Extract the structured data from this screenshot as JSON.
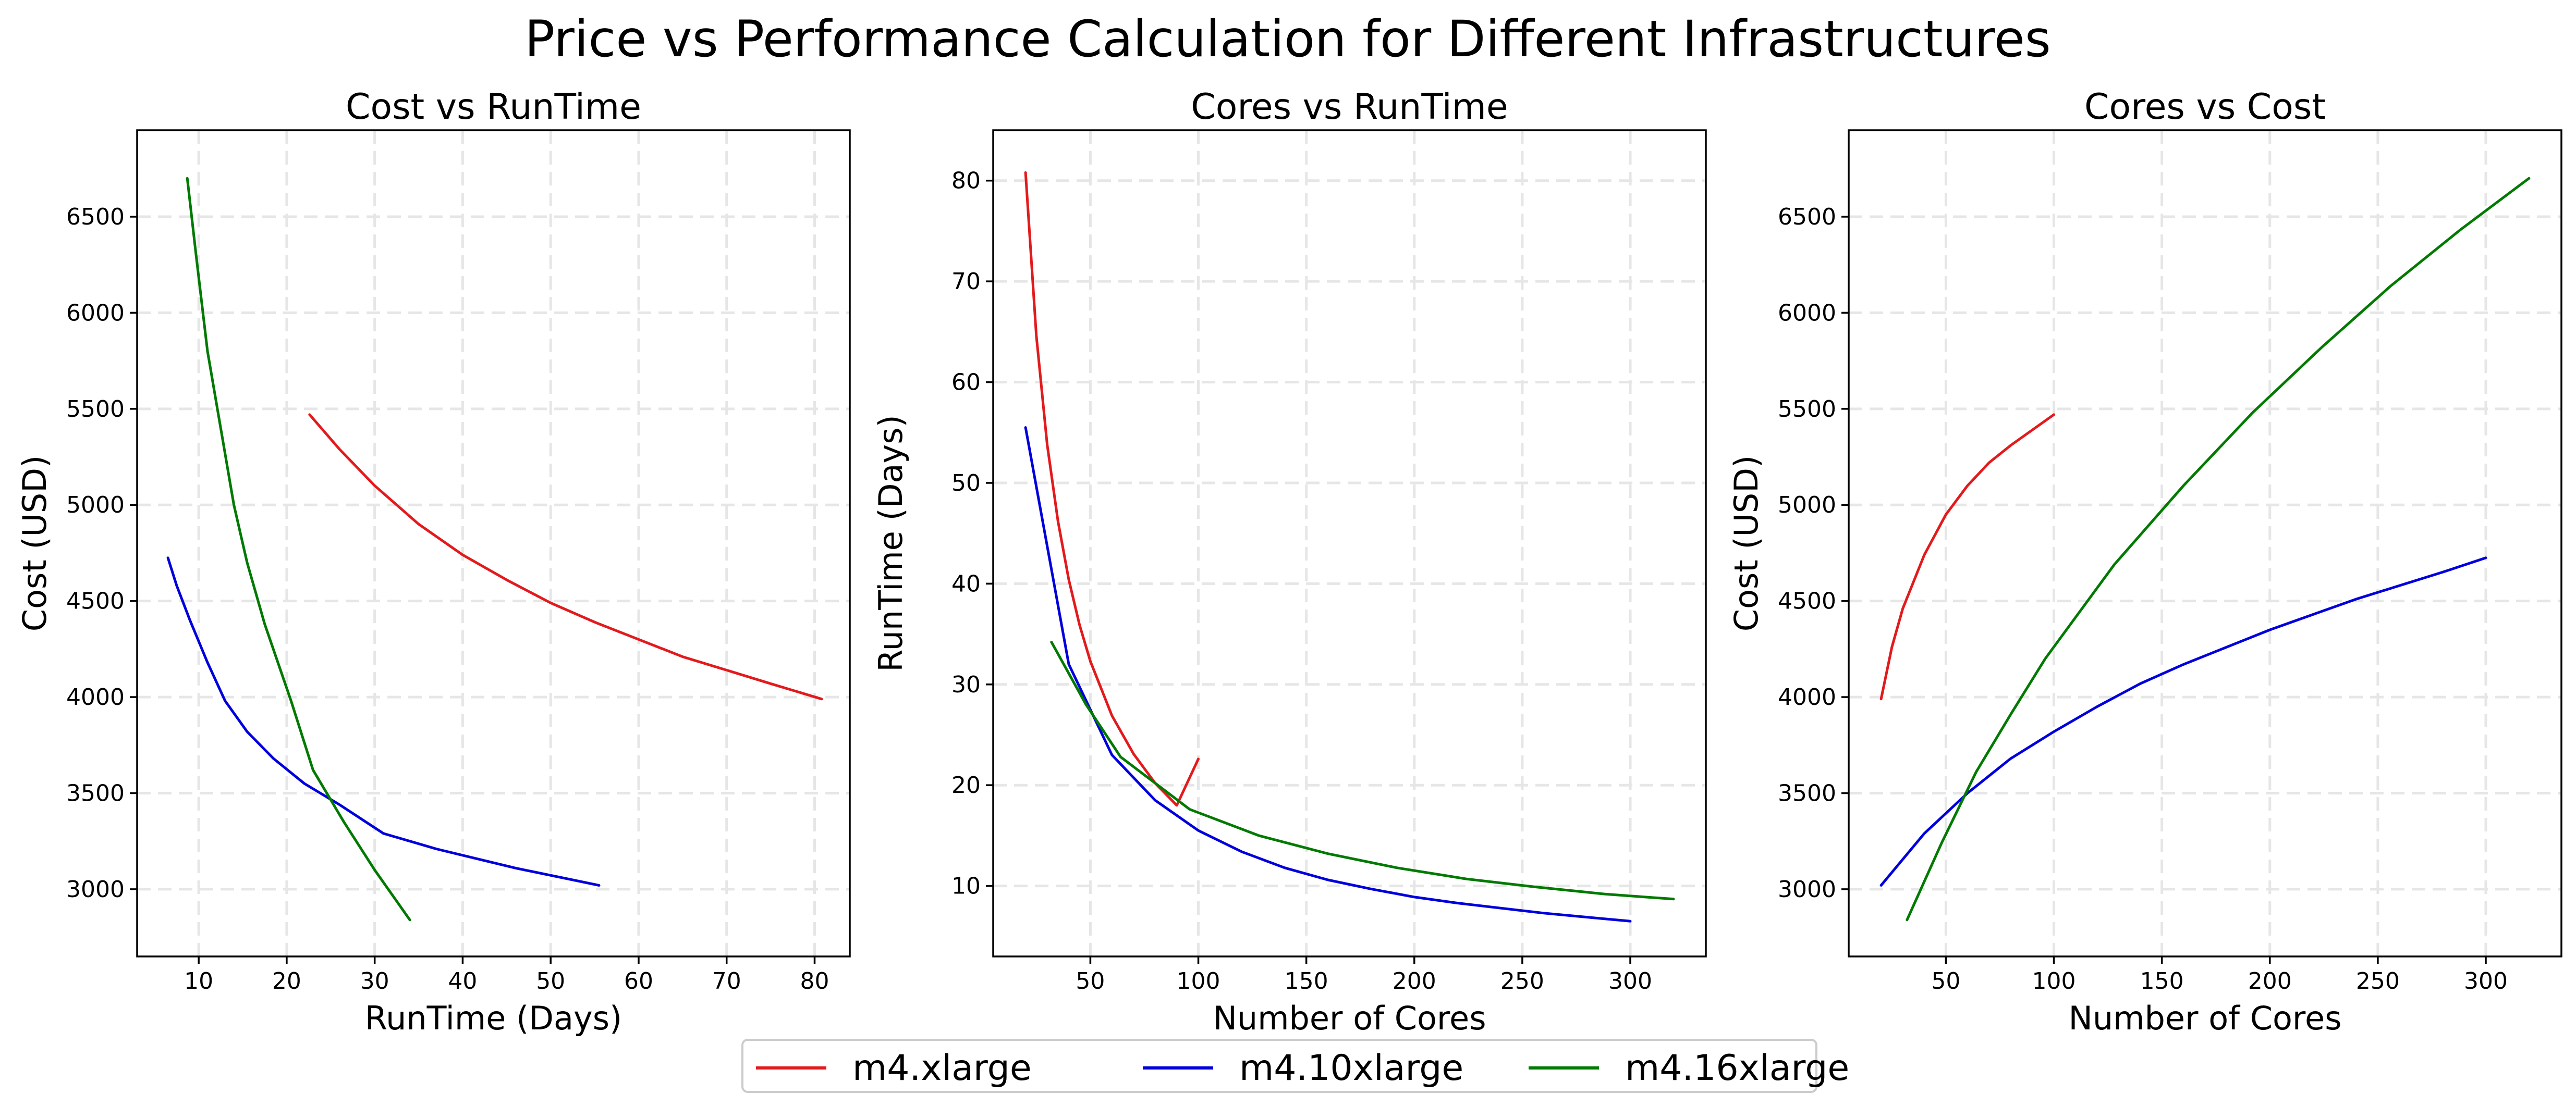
{
  "figure": {
    "title": "Price vs Performance Calculation for Different Infrastructures"
  },
  "legend": {
    "placement": "bottom-center",
    "items": [
      {
        "label": "m4.xlarge",
        "color": "#e31a1c"
      },
      {
        "label": "m4.10xlarge",
        "color": "#0000dd"
      },
      {
        "label": "m4.16xlarge",
        "color": "#007a00"
      }
    ]
  },
  "chart_data": [
    {
      "type": "line",
      "title": "Cost vs RunTime",
      "xlabel": "RunTime (Days)",
      "ylabel": "Cost (USD)",
      "xlim": [
        3,
        84
      ],
      "ylim": [
        2650,
        6950
      ],
      "xticks": [
        10,
        20,
        30,
        40,
        50,
        60,
        70,
        80
      ],
      "yticks": [
        3000,
        3500,
        4000,
        4500,
        5000,
        5500,
        6000,
        6500
      ],
      "grid": true,
      "series": [
        {
          "name": "m4.xlarge",
          "color": "#e31a1c",
          "x": [
            22.6,
            26,
            30,
            35,
            40,
            45,
            50,
            55,
            60,
            65,
            70,
            75,
            80.8
          ],
          "y": [
            5470,
            5290,
            5100,
            4900,
            4740,
            4610,
            4490,
            4390,
            4300,
            4210,
            4140,
            4070,
            3990
          ]
        },
        {
          "name": "m4.10xlarge",
          "color": "#0000dd",
          "x": [
            6.5,
            7.5,
            9,
            11,
            13,
            15.5,
            18.5,
            22,
            26,
            31,
            37,
            46,
            55.5
          ],
          "y": [
            4725,
            4580,
            4400,
            4180,
            3980,
            3820,
            3680,
            3550,
            3440,
            3290,
            3210,
            3110,
            3020
          ]
        },
        {
          "name": "m4.16xlarge",
          "color": "#007a00",
          "x": [
            8.7,
            9.7,
            11,
            12.5,
            14,
            15.5,
            17.5,
            20.5,
            23,
            26.5,
            30,
            34
          ],
          "y": [
            6700,
            6300,
            5800,
            5400,
            5000,
            4700,
            4380,
            3980,
            3620,
            3350,
            3100,
            2840
          ]
        }
      ]
    },
    {
      "type": "line",
      "title": "Cores vs RunTime",
      "xlabel": "Number of Cores",
      "ylabel": "RunTime (Days)",
      "xlim": [
        5,
        335
      ],
      "ylim": [
        3,
        85
      ],
      "xticks": [
        50,
        100,
        150,
        200,
        250,
        300
      ],
      "yticks": [
        10,
        20,
        30,
        40,
        50,
        60,
        70,
        80
      ],
      "grid": true,
      "series": [
        {
          "name": "m4.xlarge",
          "color": "#e31a1c",
          "x": [
            20,
            25,
            30,
            35,
            40,
            45,
            50,
            60,
            70,
            80,
            90,
            100
          ],
          "y": [
            80.8,
            64.6,
            53.8,
            46.2,
            40.4,
            35.9,
            32.3,
            26.9,
            23.1,
            20.2,
            18.0,
            22.6
          ]
        },
        {
          "name": "m4.10xlarge",
          "color": "#0000dd",
          "x": [
            20,
            40,
            60,
            80,
            100,
            120,
            140,
            160,
            180,
            200,
            220,
            240,
            260,
            280,
            300
          ],
          "y": [
            55.5,
            32.0,
            23.0,
            18.5,
            15.5,
            13.4,
            11.8,
            10.6,
            9.7,
            8.9,
            8.3,
            7.8,
            7.3,
            6.9,
            6.5
          ]
        },
        {
          "name": "m4.16xlarge",
          "color": "#007a00",
          "x": [
            32,
            48,
            64,
            80,
            96,
            128,
            160,
            192,
            224,
            256,
            288,
            320
          ],
          "y": [
            34.2,
            28.0,
            22.8,
            20.2,
            17.6,
            15.0,
            13.2,
            11.8,
            10.7,
            9.9,
            9.2,
            8.7
          ]
        }
      ]
    },
    {
      "type": "line",
      "title": "Cores vs Cost",
      "xlabel": "Number of Cores",
      "ylabel": "Cost (USD)",
      "xlim": [
        5,
        335
      ],
      "ylim": [
        2650,
        6950
      ],
      "xticks": [
        50,
        100,
        150,
        200,
        250,
        300
      ],
      "yticks": [
        3000,
        3500,
        4000,
        4500,
        5000,
        5500,
        6000,
        6500
      ],
      "grid": true,
      "series": [
        {
          "name": "m4.xlarge",
          "color": "#e31a1c",
          "x": [
            20,
            25,
            30,
            40,
            50,
            60,
            70,
            80,
            90,
            100
          ],
          "y": [
            3990,
            4260,
            4460,
            4740,
            4950,
            5100,
            5220,
            5310,
            5390,
            5470
          ]
        },
        {
          "name": "m4.10xlarge",
          "color": "#0000dd",
          "x": [
            20,
            40,
            60,
            80,
            100,
            120,
            140,
            160,
            180,
            200,
            220,
            240,
            260,
            280,
            300
          ],
          "y": [
            3020,
            3290,
            3500,
            3680,
            3820,
            3950,
            4070,
            4170,
            4260,
            4350,
            4430,
            4510,
            4580,
            4650,
            4725
          ]
        },
        {
          "name": "m4.16xlarge",
          "color": "#007a00",
          "x": [
            32,
            48,
            64,
            80,
            96,
            128,
            160,
            192,
            224,
            256,
            288,
            320
          ],
          "y": [
            2840,
            3240,
            3610,
            3910,
            4200,
            4690,
            5100,
            5480,
            5820,
            6140,
            6430,
            6700
          ]
        }
      ]
    }
  ]
}
